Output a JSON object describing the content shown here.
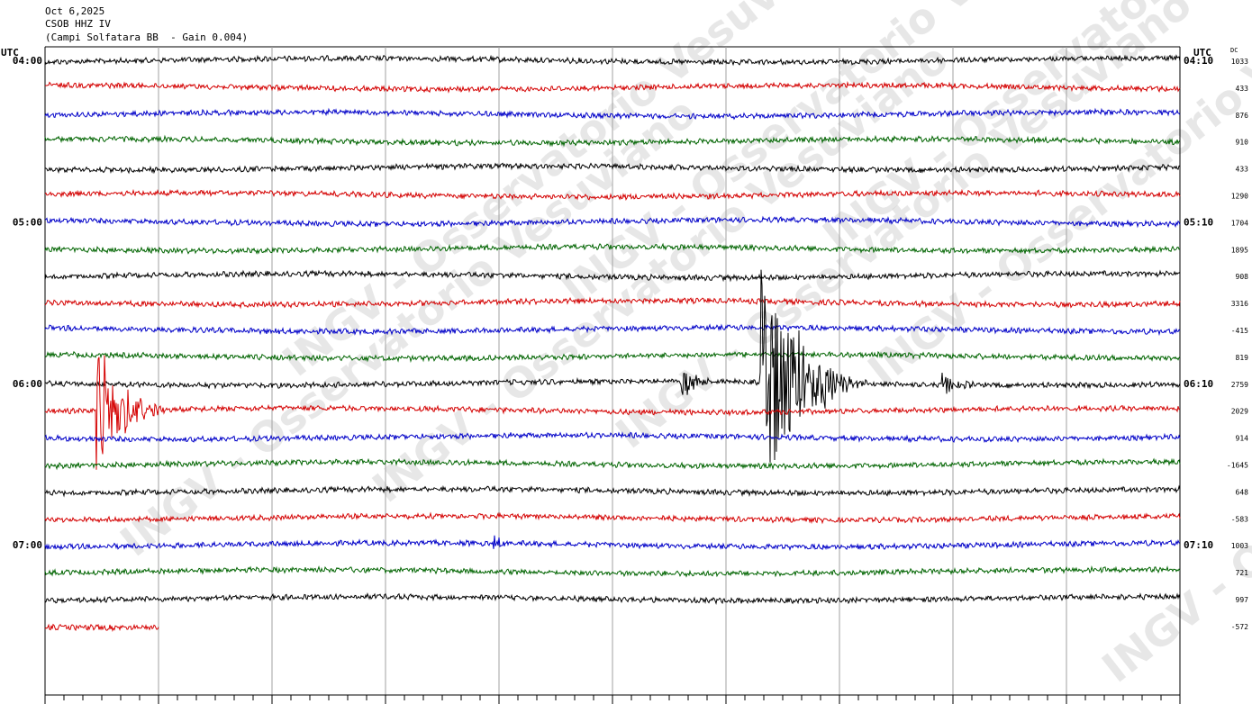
{
  "header": {
    "date": "Oct 6,2025",
    "station": "CSOB HHZ IV",
    "description": "(Campi Solfatara BB  - Gain 0.004)"
  },
  "axis": {
    "left_label": "UTC",
    "right_label": "UTC",
    "dc_label": "DC"
  },
  "watermark": "INGV - Osservatorio Vesuviano",
  "colors": {
    "trace_cycle": [
      "#000000",
      "#d40000",
      "#0000c8",
      "#006400"
    ],
    "grid": "#a0a0a0"
  },
  "chart_data": {
    "type": "line",
    "title": "",
    "minutes_per_line": 10,
    "trace_count": 22,
    "last_trace_fraction": 0.1,
    "row_time_labels": [
      {
        "row": 0,
        "left": "04:00",
        "right": "04:10"
      },
      {
        "row": 6,
        "left": "05:00",
        "right": "05:10"
      },
      {
        "row": 12,
        "left": "06:00",
        "right": "06:10"
      },
      {
        "row": 18,
        "left": "07:00",
        "right": "07:10"
      }
    ],
    "dc_values": [
      "1033",
      "433",
      "876",
      "910",
      "433",
      "1290",
      "1704",
      "1895",
      "908",
      "3316",
      "-415",
      "819",
      "2759",
      "2029",
      "914",
      "-1645",
      "648",
      "-583",
      "1003",
      "721",
      "997",
      "-572"
    ],
    "events": [
      {
        "row": 13,
        "minute": 0.45,
        "amplitude": 85,
        "duration_min": 0.6
      },
      {
        "row": 12,
        "minute": 5.6,
        "amplitude": 22,
        "duration_min": 0.3
      },
      {
        "row": 12,
        "minute": 6.3,
        "amplitude": 150,
        "duration_min": 0.8
      },
      {
        "row": 12,
        "minute": 6.55,
        "amplitude": 70,
        "duration_min": 0.3
      },
      {
        "row": 12,
        "minute": 6.85,
        "amplitude": 25,
        "duration_min": 0.4
      },
      {
        "row": 12,
        "minute": 7.9,
        "amplitude": 16,
        "duration_min": 0.3
      },
      {
        "row": 18,
        "minute": 3.95,
        "amplitude": 14,
        "duration_min": 0.15
      }
    ]
  }
}
